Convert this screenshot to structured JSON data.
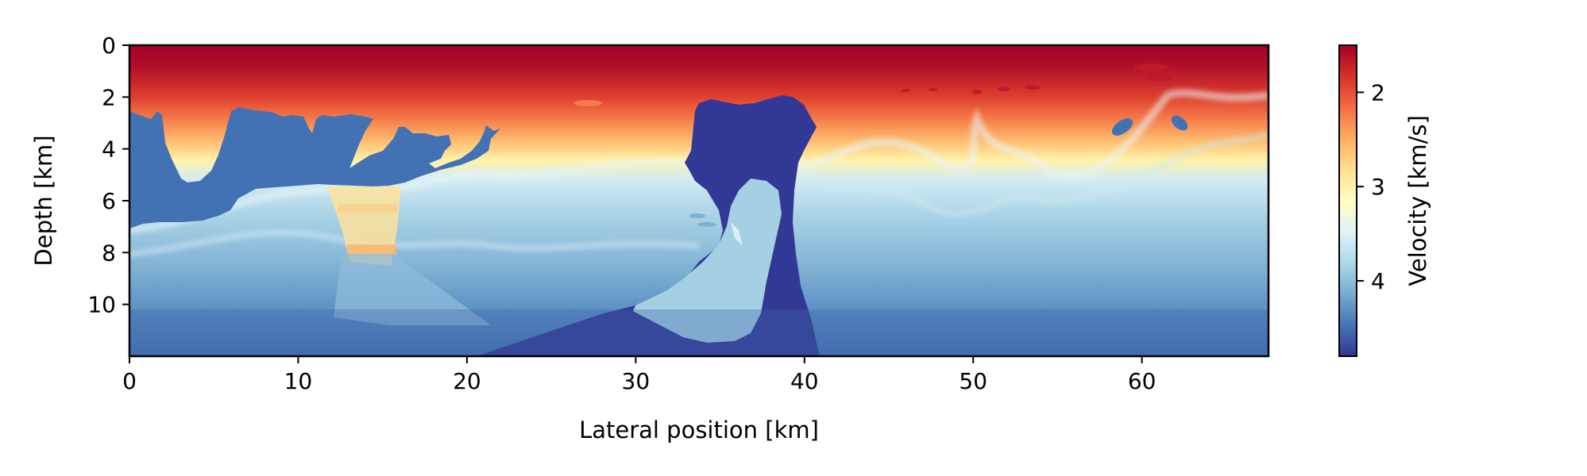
{
  "chart_data": {
    "type": "heatmap",
    "title": "",
    "xlabel": "Lateral position [km]",
    "ylabel": "Depth [km]",
    "xlim": [
      0,
      67.5
    ],
    "ylim": [
      12,
      0
    ],
    "xticks": [
      {
        "value": 0,
        "label": "0"
      },
      {
        "value": 10,
        "label": "10"
      },
      {
        "value": 20,
        "label": "20"
      },
      {
        "value": 30,
        "label": "30"
      },
      {
        "value": 40,
        "label": "40"
      },
      {
        "value": 50,
        "label": "50"
      },
      {
        "value": 60,
        "label": "60"
      }
    ],
    "yticks": [
      {
        "value": 0,
        "label": "0"
      },
      {
        "value": 2,
        "label": "2"
      },
      {
        "value": 4,
        "label": "4"
      },
      {
        "value": 6,
        "label": "6"
      },
      {
        "value": 8,
        "label": "8"
      },
      {
        "value": 10,
        "label": "10"
      }
    ],
    "colorbar": {
      "label": "Velocity [km/s]",
      "colormap": "RdYlBu",
      "reversed_axis": true,
      "vmin": 1.5,
      "vmax": 4.8,
      "ticks": [
        {
          "value": 2,
          "label": "2"
        },
        {
          "value": 3,
          "label": "3"
        },
        {
          "value": 4,
          "label": "4"
        }
      ],
      "colors": [
        "#313695",
        "#4575b4",
        "#74add1",
        "#abd9e9",
        "#e0f3f8",
        "#ffffbf",
        "#fee090",
        "#fdae61",
        "#f46d43",
        "#d73027",
        "#a50026"
      ]
    },
    "grid": false,
    "features": {
      "shallow_water_velocity": 1.5,
      "sediment_velocity_range": [
        2.0,
        3.5
      ],
      "deep_background_velocity": 4.3,
      "salt_velocity": 4.8,
      "salt_body_depth_range": [
        2,
        12
      ],
      "salt_body_x_range": [
        30,
        41
      ]
    }
  }
}
